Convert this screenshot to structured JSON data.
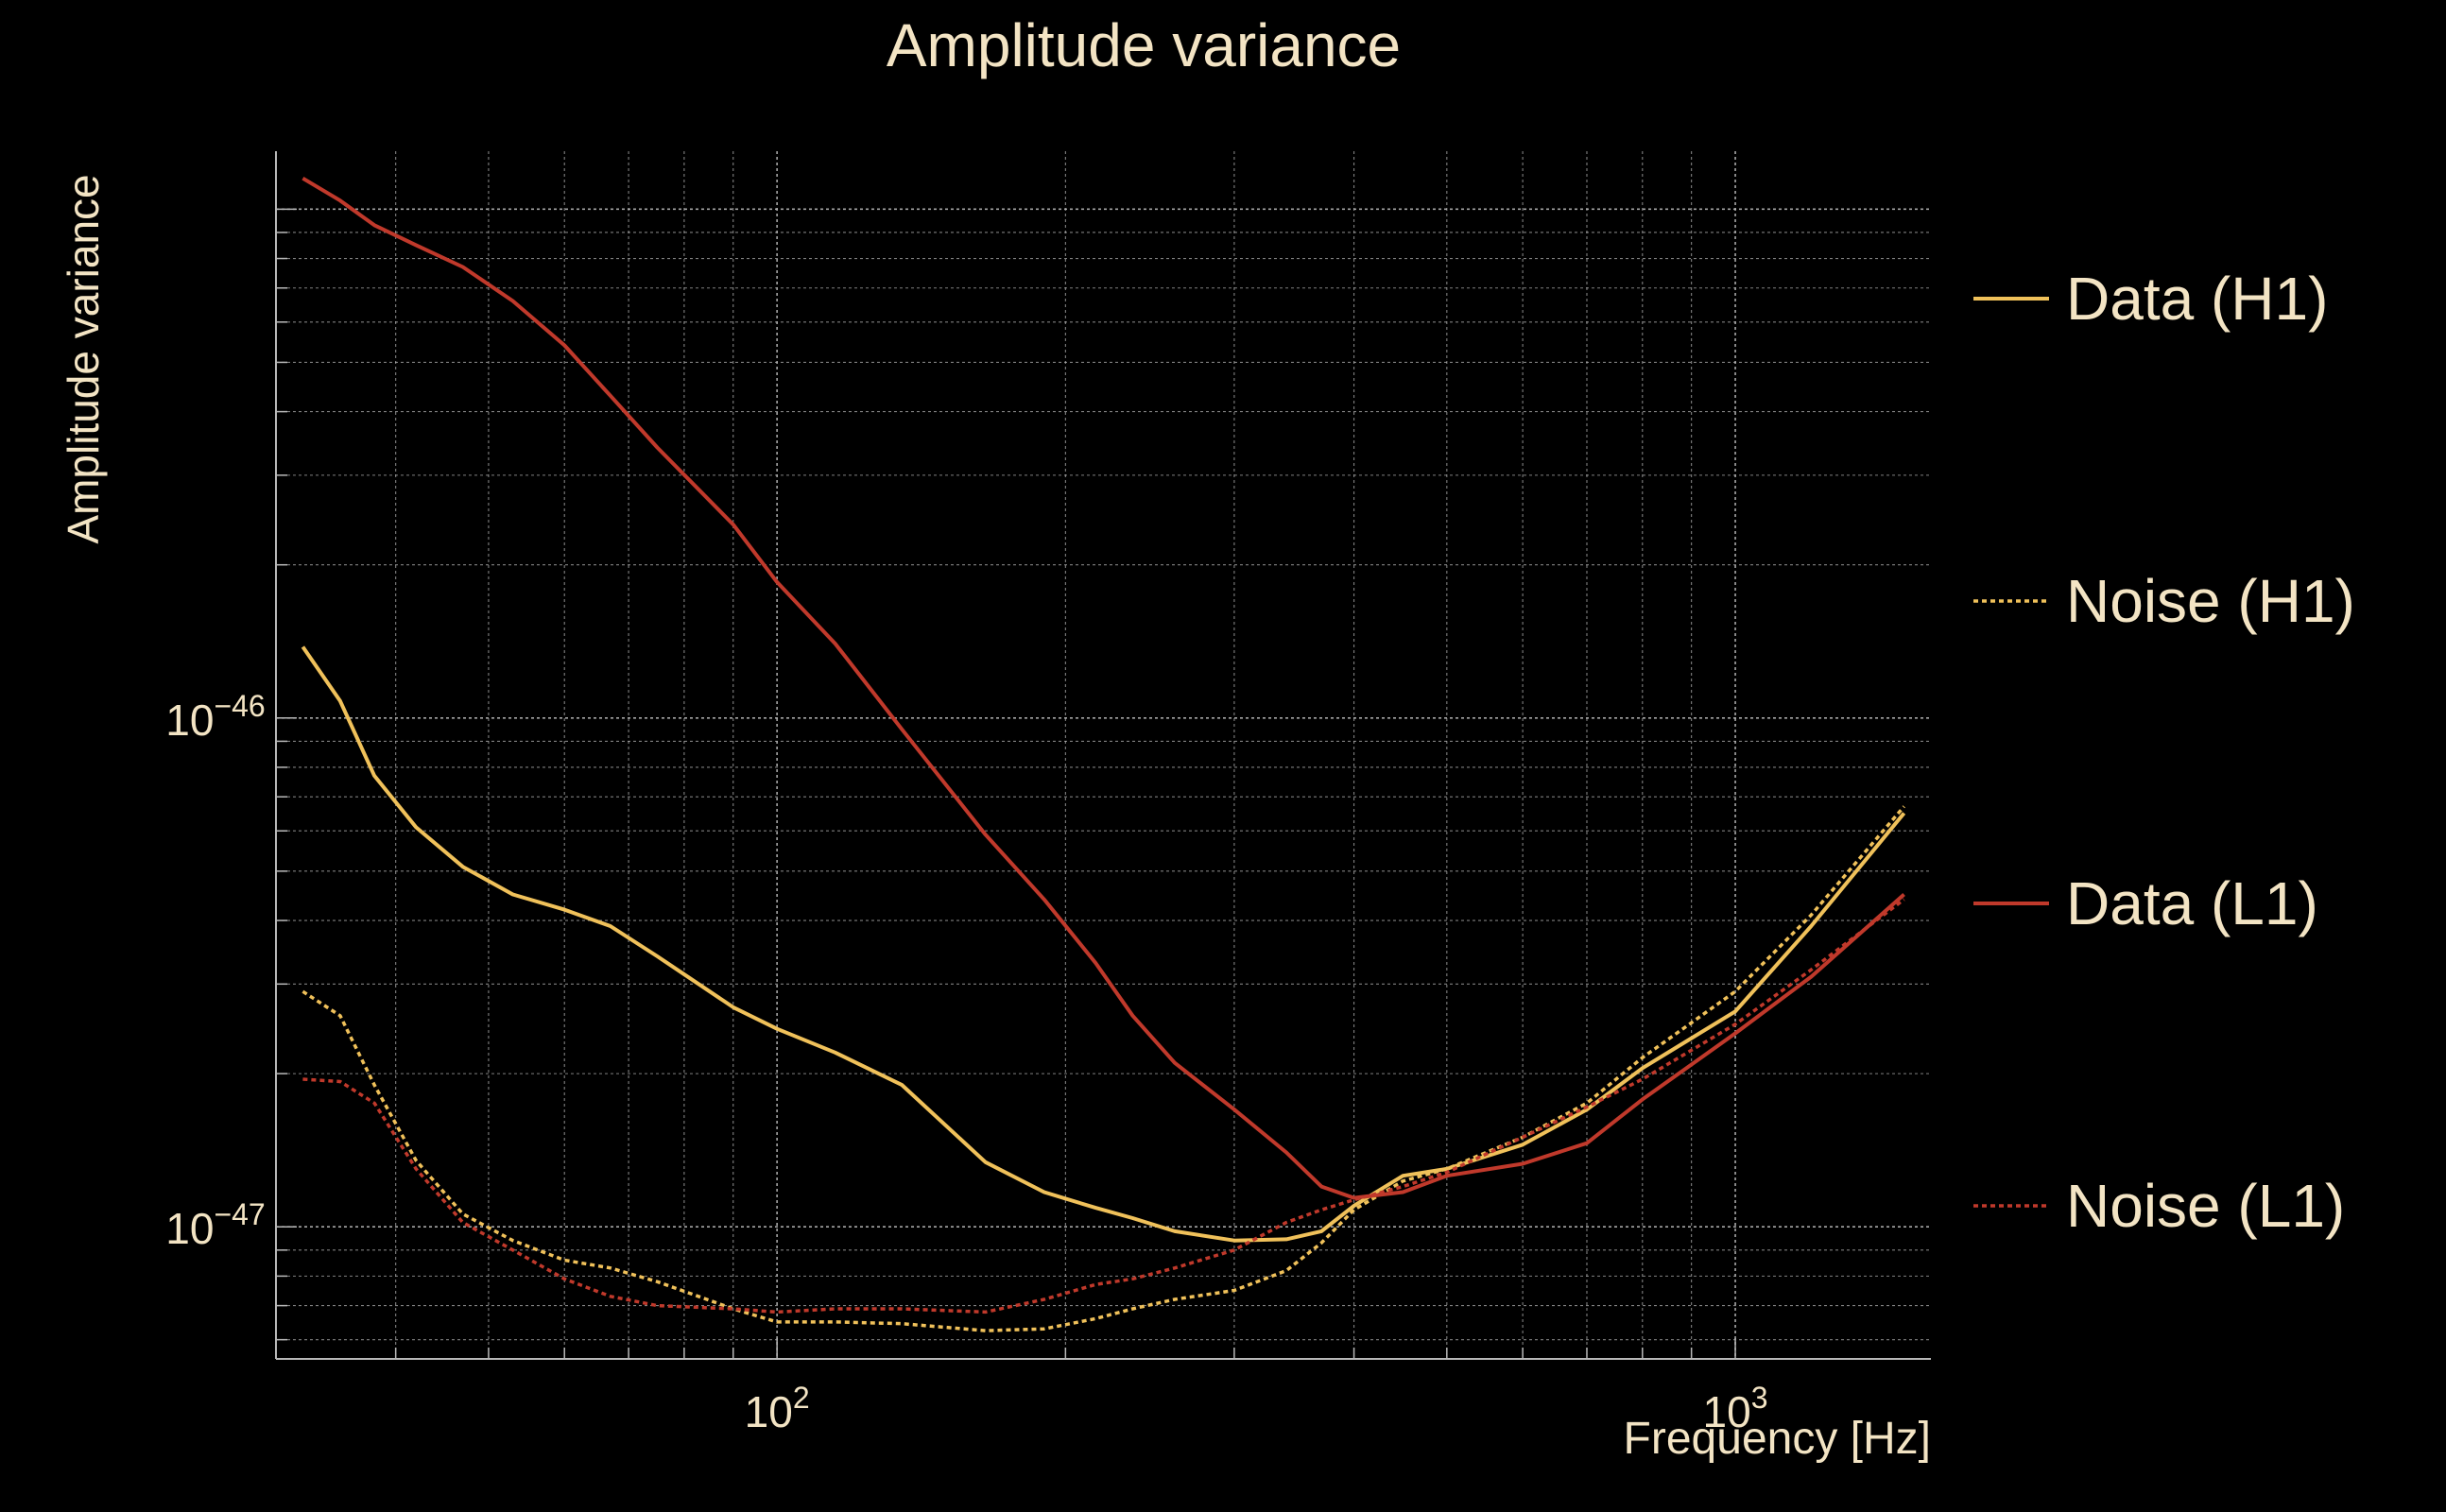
{
  "chart_data": {
    "type": "line",
    "title": "Amplitude variance",
    "xlabel": "Frequency [Hz]",
    "ylabel": "Amplitude variance",
    "x_scale": "log",
    "y_scale": "log",
    "xlim": [
      30,
      1600
    ],
    "ylim": [
      5.5e-48,
      1.3e-45
    ],
    "x_ticks": [
      {
        "value": 100,
        "base": "10",
        "exp": "2"
      },
      {
        "value": 1000,
        "base": "10",
        "exp": "3"
      }
    ],
    "y_ticks": [
      {
        "value": 1e-47,
        "base": "10",
        "exp": "−47"
      },
      {
        "value": 1e-46,
        "base": "10",
        "exp": "−46"
      }
    ],
    "grid": true,
    "legend_position": "right",
    "colors": {
      "background": "#000000",
      "text": "#f3e4c4",
      "grid": "#b8b8b8",
      "h1": "#f0c15a",
      "l1": "#c0392b"
    },
    "series": [
      {
        "name": "Data (H1)",
        "color": "#f0c15a",
        "dash": "solid",
        "x": [
          32,
          35,
          38,
          42,
          47,
          53,
          60,
          67,
          75,
          90,
          100,
          115,
          135,
          165,
          190,
          215,
          235,
          260,
          300,
          340,
          370,
          400,
          450,
          500,
          600,
          700,
          800,
          1000,
          1200,
          1500
        ],
        "y": [
          1.38e-46,
          1.08e-46,
          7.7e-47,
          6.1e-47,
          5.1e-47,
          4.5e-47,
          4.2e-47,
          3.9e-47,
          3.4e-47,
          2.7e-47,
          2.45e-47,
          2.2e-47,
          1.9e-47,
          1.34e-47,
          1.17e-47,
          1.09e-47,
          1.04e-47,
          9.8e-48,
          9.4e-48,
          9.45e-48,
          9.8e-48,
          1.1e-47,
          1.26e-47,
          1.3e-47,
          1.45e-47,
          1.7e-47,
          2.05e-47,
          2.65e-47,
          3.9e-47,
          6.5e-47
        ]
      },
      {
        "name": "Noise (H1)",
        "color": "#f0c15a",
        "dash": "dotted",
        "x": [
          32,
          35,
          38,
          42,
          47,
          53,
          60,
          67,
          75,
          90,
          100,
          115,
          135,
          165,
          190,
          215,
          235,
          260,
          300,
          340,
          370,
          400,
          450,
          500,
          600,
          700,
          800,
          1000,
          1200,
          1500
        ],
        "y": [
          2.9e-47,
          2.6e-47,
          1.9e-47,
          1.35e-47,
          1.06e-47,
          9.4e-48,
          8.6e-48,
          8.3e-48,
          7.8e-48,
          6.9e-48,
          6.5e-48,
          6.5e-48,
          6.45e-48,
          6.25e-48,
          6.3e-48,
          6.6e-48,
          6.9e-48,
          7.2e-48,
          7.5e-48,
          8.2e-48,
          9.3e-48,
          1.08e-47,
          1.23e-47,
          1.3e-47,
          1.5e-47,
          1.75e-47,
          2.15e-47,
          2.9e-47,
          4.1e-47,
          6.7e-47
        ]
      },
      {
        "name": "Data (L1)",
        "color": "#c0392b",
        "dash": "solid",
        "x": [
          32,
          35,
          38,
          42,
          47,
          53,
          60,
          67,
          75,
          90,
          100,
          115,
          135,
          165,
          190,
          215,
          235,
          260,
          300,
          340,
          370,
          400,
          450,
          500,
          600,
          700,
          800,
          1000,
          1200,
          1500
        ],
        "y": [
          1.15e-45,
          1.04e-45,
          9.3e-46,
          8.5e-46,
          7.7e-46,
          6.6e-46,
          5.4e-46,
          4.3e-46,
          3.4e-46,
          2.4e-46,
          1.85e-46,
          1.4e-46,
          9.5e-47,
          5.9e-47,
          4.4e-47,
          3.3e-47,
          2.6e-47,
          2.1e-47,
          1.7e-47,
          1.4e-47,
          1.2e-47,
          1.14e-47,
          1.17e-47,
          1.26e-47,
          1.33e-47,
          1.46e-47,
          1.78e-47,
          2.4e-47,
          3.1e-47,
          4.5e-47
        ]
      },
      {
        "name": "Noise (L1)",
        "color": "#c0392b",
        "dash": "dotted",
        "x": [
          32,
          35,
          38,
          42,
          47,
          53,
          60,
          67,
          75,
          90,
          100,
          115,
          135,
          165,
          190,
          215,
          235,
          260,
          300,
          340,
          370,
          400,
          450,
          500,
          600,
          700,
          800,
          1000,
          1200,
          1500
        ],
        "y": [
          1.95e-47,
          1.93e-47,
          1.75e-47,
          1.3e-47,
          1.02e-47,
          9e-48,
          7.9e-48,
          7.3e-48,
          7e-48,
          6.9e-48,
          6.8e-48,
          6.9e-48,
          6.9e-48,
          6.8e-48,
          7.2e-48,
          7.7e-48,
          7.9e-48,
          8.3e-48,
          9e-48,
          1.02e-47,
          1.08e-47,
          1.13e-47,
          1.2e-47,
          1.28e-47,
          1.5e-47,
          1.72e-47,
          1.95e-47,
          2.5e-47,
          3.2e-47,
          4.4e-47
        ]
      }
    ]
  }
}
